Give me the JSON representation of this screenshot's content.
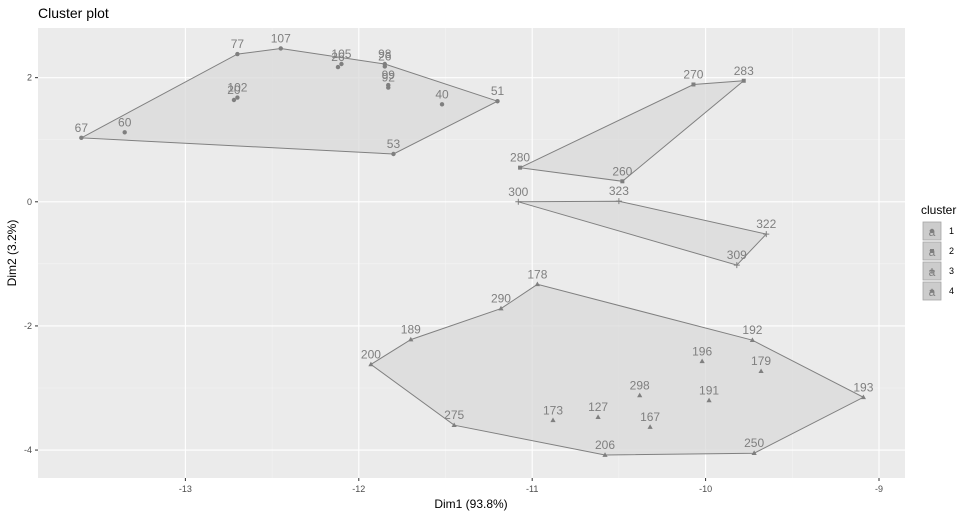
{
  "chart_data": {
    "type": "scatter",
    "title": "Cluster plot",
    "xlabel": "Dim1 (93.8%)",
    "ylabel": "Dim2 (3.2%)",
    "xlim": [
      -13.85,
      -8.85
    ],
    "ylim": [
      -4.45,
      2.8
    ],
    "xticks": [
      -13,
      -12,
      -11,
      -10,
      -9
    ],
    "yticks": [
      -4,
      -2,
      0,
      2
    ],
    "xtick_labels": [
      "-13",
      "-12",
      "-11",
      "-10",
      "-9"
    ],
    "ytick_labels": [
      "-4",
      "-2",
      "0",
      "2"
    ],
    "grid": true,
    "legend": {
      "title": "cluster",
      "position": "right",
      "entries": [
        {
          "key": "a",
          "label": "1"
        },
        {
          "key": "a",
          "label": "2"
        },
        {
          "key": "a",
          "label": "3"
        },
        {
          "key": "a",
          "label": "4"
        }
      ]
    },
    "colors": {
      "panel": "#ebebeb",
      "grid_major": "#ffffff",
      "grid_minor": "#f4f4f4",
      "hull_fill": "#d9d9d9",
      "hull_stroke": "#808080",
      "point": "#7f7f7f",
      "label": "#7f7f7f",
      "legend_key_bg": "#cccccc"
    },
    "series": [
      {
        "name": "1",
        "shape": "circle",
        "points": [
          {
            "x": -13.6,
            "y": 1.03,
            "label": "67"
          },
          {
            "x": -13.35,
            "y": 1.12,
            "label": "60"
          },
          {
            "x": -12.7,
            "y": 2.38,
            "label": "77"
          },
          {
            "x": -12.7,
            "y": 1.68,
            "label": "102"
          },
          {
            "x": -12.72,
            "y": 1.64,
            "label": "20"
          },
          {
            "x": -12.45,
            "y": 2.47,
            "label": "107"
          },
          {
            "x": -12.1,
            "y": 2.22,
            "label": "105"
          },
          {
            "x": -12.12,
            "y": 2.17,
            "label": "26"
          },
          {
            "x": -11.85,
            "y": 2.22,
            "label": "98"
          },
          {
            "x": -11.85,
            "y": 2.18,
            "label": "26"
          },
          {
            "x": -11.83,
            "y": 1.88,
            "label": "99"
          },
          {
            "x": -11.83,
            "y": 1.84,
            "label": "92"
          },
          {
            "x": -11.52,
            "y": 1.57,
            "label": "40"
          },
          {
            "x": -11.2,
            "y": 1.62,
            "label": "51"
          },
          {
            "x": -11.8,
            "y": 0.77,
            "label": "53"
          }
        ],
        "hull": [
          [
            -13.6,
            1.03
          ],
          [
            -12.7,
            2.38
          ],
          [
            -12.45,
            2.47
          ],
          [
            -11.85,
            2.22
          ],
          [
            -11.2,
            1.62
          ],
          [
            -11.8,
            0.77
          ]
        ]
      },
      {
        "name": "2",
        "shape": "square",
        "points": [
          {
            "x": -11.07,
            "y": 0.55,
            "label": "280"
          },
          {
            "x": -10.07,
            "y": 1.89,
            "label": "270"
          },
          {
            "x": -9.78,
            "y": 1.95,
            "label": "283"
          },
          {
            "x": -10.48,
            "y": 0.33,
            "label": "260"
          }
        ],
        "hull": [
          [
            -11.07,
            0.55
          ],
          [
            -10.07,
            1.89
          ],
          [
            -9.78,
            1.95
          ],
          [
            -10.48,
            0.33
          ]
        ]
      },
      {
        "name": "3",
        "shape": "cross",
        "points": [
          {
            "x": -11.08,
            "y": 0.0,
            "label": "300"
          },
          {
            "x": -10.5,
            "y": 0.01,
            "label": "323"
          },
          {
            "x": -9.65,
            "y": -0.52,
            "label": "322"
          },
          {
            "x": -9.82,
            "y": -1.02,
            "label": "309"
          }
        ],
        "hull": [
          [
            -11.08,
            0.0
          ],
          [
            -10.5,
            0.01
          ],
          [
            -9.65,
            -0.52
          ],
          [
            -9.82,
            -1.02
          ]
        ]
      },
      {
        "name": "4",
        "shape": "triangle",
        "points": [
          {
            "x": -11.93,
            "y": -2.62,
            "label": "200"
          },
          {
            "x": -11.7,
            "y": -2.22,
            "label": "189"
          },
          {
            "x": -11.18,
            "y": -1.72,
            "label": "290"
          },
          {
            "x": -10.97,
            "y": -1.33,
            "label": "178"
          },
          {
            "x": -11.45,
            "y": -3.6,
            "label": "275"
          },
          {
            "x": -10.88,
            "y": -3.52,
            "label": "173"
          },
          {
            "x": -10.62,
            "y": -3.47,
            "label": "127"
          },
          {
            "x": -10.38,
            "y": -3.12,
            "label": "298"
          },
          {
            "x": -10.32,
            "y": -3.63,
            "label": "167"
          },
          {
            "x": -10.58,
            "y": -4.08,
            "label": "206"
          },
          {
            "x": -10.02,
            "y": -2.57,
            "label": "196"
          },
          {
            "x": -9.98,
            "y": -3.2,
            "label": "191"
          },
          {
            "x": -9.68,
            "y": -2.73,
            "label": "179"
          },
          {
            "x": -9.73,
            "y": -2.23,
            "label": "192"
          },
          {
            "x": -9.72,
            "y": -4.05,
            "label": "250"
          },
          {
            "x": -9.09,
            "y": -3.15,
            "label": "193"
          }
        ],
        "hull": [
          [
            -11.93,
            -2.62
          ],
          [
            -11.7,
            -2.22
          ],
          [
            -11.18,
            -1.72
          ],
          [
            -10.97,
            -1.33
          ],
          [
            -9.73,
            -2.23
          ],
          [
            -9.09,
            -3.15
          ],
          [
            -9.72,
            -4.05
          ],
          [
            -10.58,
            -4.08
          ],
          [
            -11.45,
            -3.6
          ]
        ]
      }
    ]
  }
}
